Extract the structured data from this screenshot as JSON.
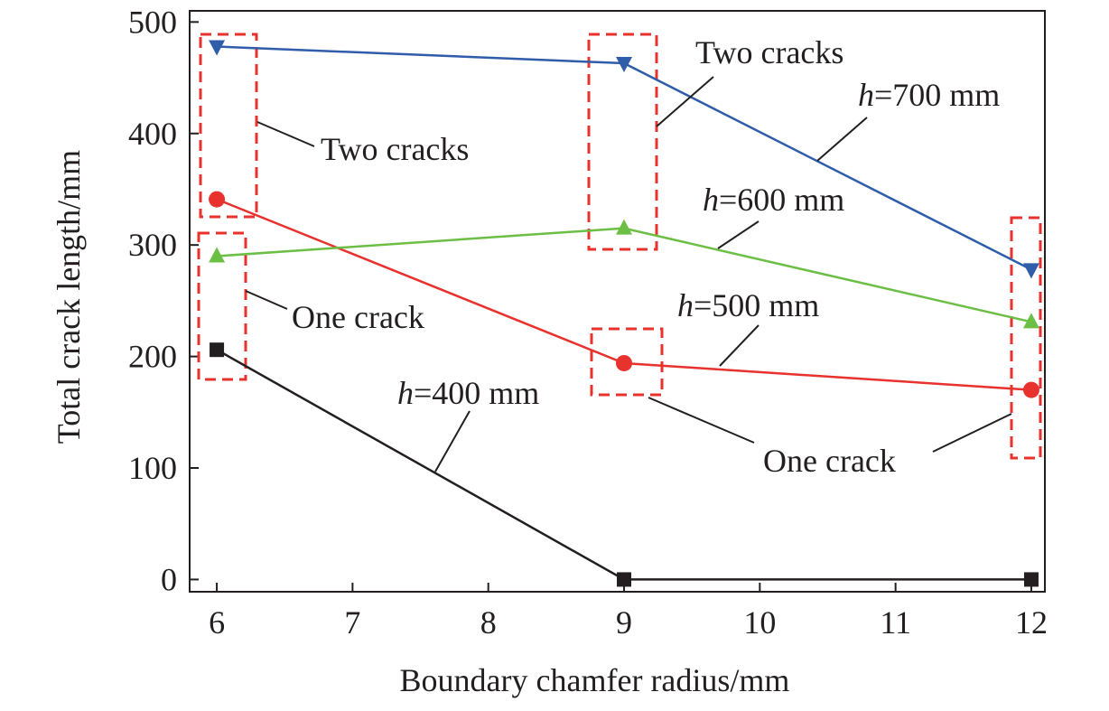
{
  "chart_data": {
    "type": "line",
    "title": "",
    "xlabel": "Boundary chamfer radius/mm",
    "ylabel": "Total crack length/mm",
    "xlim": [
      5.8,
      12.1
    ],
    "ylim": [
      -11,
      510
    ],
    "xticks": [
      6,
      7,
      8,
      9,
      10,
      11,
      12
    ],
    "yticks": [
      0,
      100,
      200,
      300,
      400,
      500
    ],
    "grid": false,
    "x": [
      6,
      9,
      12
    ],
    "series": [
      {
        "name": "h=400 mm",
        "values": [
          206,
          0,
          0
        ],
        "color": "#231f20",
        "marker": "square"
      },
      {
        "name": "h=500 mm",
        "values": [
          341,
          194,
          170
        ],
        "color": "#e8322e",
        "marker": "circle"
      },
      {
        "name": "h=600 mm",
        "values": [
          290,
          315,
          231
        ],
        "color": "#6cbf45",
        "marker": "triangle-up"
      },
      {
        "name": "h=700 mm",
        "values": [
          478,
          463,
          278
        ],
        "color": "#2f5daa",
        "marker": "triangle-down"
      }
    ],
    "annotations": {
      "two_cracks_a": "Two cracks",
      "two_cracks_b": "Two cracks",
      "one_crack_a": "One crack",
      "one_crack_b": "One crack",
      "h700": {
        "italic": "h",
        "rest": "=700 mm"
      },
      "h600": {
        "italic": "h",
        "rest": "=600 mm"
      },
      "h500": {
        "italic": "h",
        "rest": "=500 mm"
      },
      "h400": {
        "italic": "h",
        "rest": "=400 mm"
      }
    },
    "highlight_box_color": "#e8322e"
  }
}
